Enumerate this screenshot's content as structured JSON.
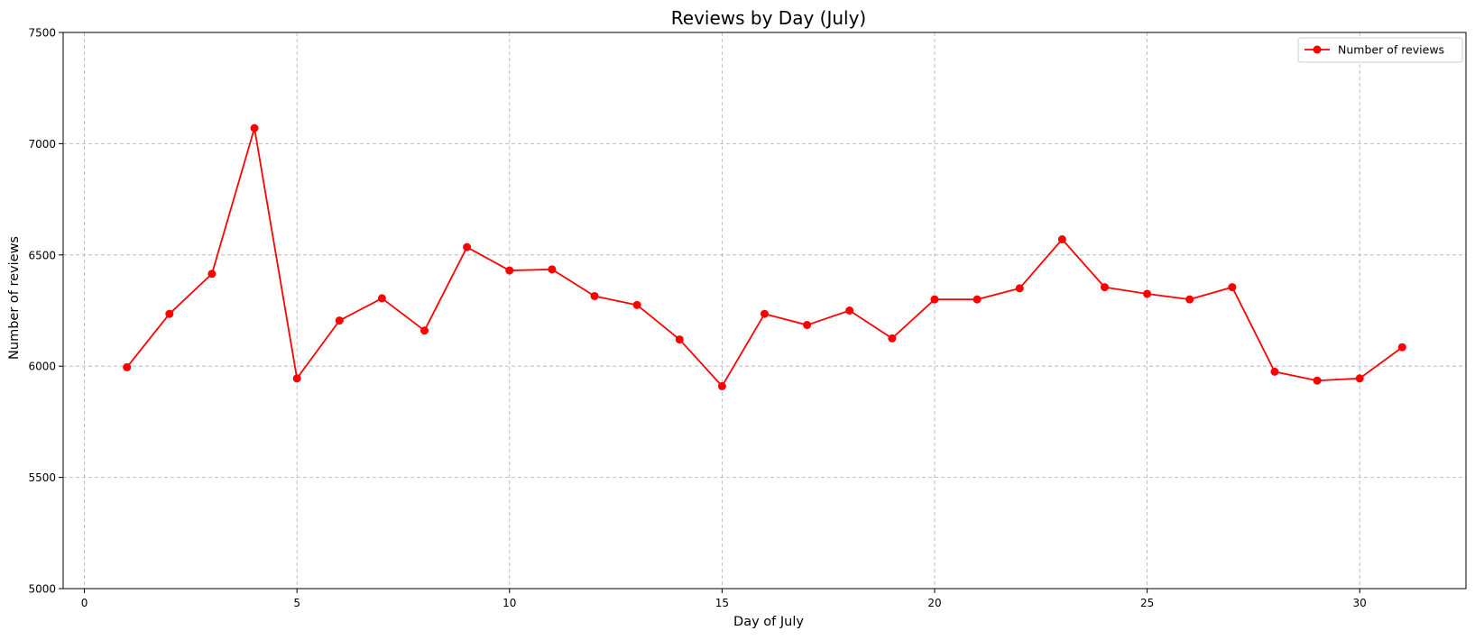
{
  "chart_data": {
    "type": "line",
    "title": "Reviews by Day (July)",
    "xlabel": "Day of July",
    "ylabel": "Number of reviews",
    "xlim": [
      -0.5,
      32.5
    ],
    "ylim": [
      5000,
      7500
    ],
    "xticks": [
      0,
      5,
      10,
      15,
      20,
      25,
      30
    ],
    "yticks": [
      5000,
      5500,
      6000,
      6500,
      7000,
      7500
    ],
    "grid": true,
    "legend_position": "top-right",
    "series": [
      {
        "name": "Number of reviews",
        "color": "#ff0000",
        "marker": "circle",
        "x": [
          1,
          2,
          3,
          4,
          5,
          6,
          7,
          8,
          9,
          10,
          11,
          12,
          13,
          14,
          15,
          16,
          17,
          18,
          19,
          20,
          21,
          22,
          23,
          24,
          25,
          26,
          27,
          28,
          29,
          30,
          31
        ],
        "y": [
          5995,
          6235,
          6415,
          7070,
          5945,
          6205,
          6305,
          6160,
          6535,
          6430,
          6435,
          6315,
          6275,
          6120,
          5910,
          6235,
          6185,
          6250,
          6125,
          6300,
          6300,
          6350,
          6570,
          6355,
          6325,
          6300,
          6355,
          5975,
          5935,
          5945,
          6085
        ]
      }
    ]
  }
}
